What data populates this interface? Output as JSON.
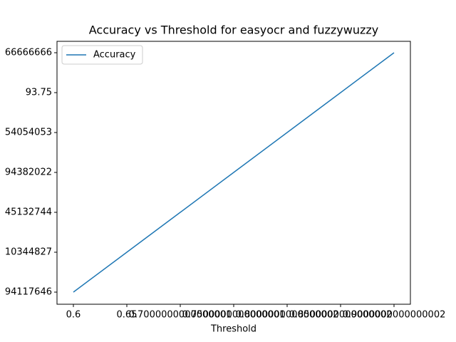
{
  "chart_data": {
    "type": "line",
    "title": "Accuracy vs Threshold for easyocr and fuzzywuzzy",
    "x_label": "Threshold",
    "categories": [
      "0.6",
      "0.65",
      "0.7000000000000001",
      "0.7500000000000001",
      "0.8000000000000002",
      "0.8500000000000002",
      "0.9000000000000002"
    ],
    "series": [
      {
        "name": "Accuracy",
        "color": "#1f77b4",
        "values": [
          "94117646",
          "10344827",
          "45132744",
          "94382022",
          "54054053",
          "93.75",
          "66666666"
        ]
      }
    ],
    "legend": "upper left"
  }
}
